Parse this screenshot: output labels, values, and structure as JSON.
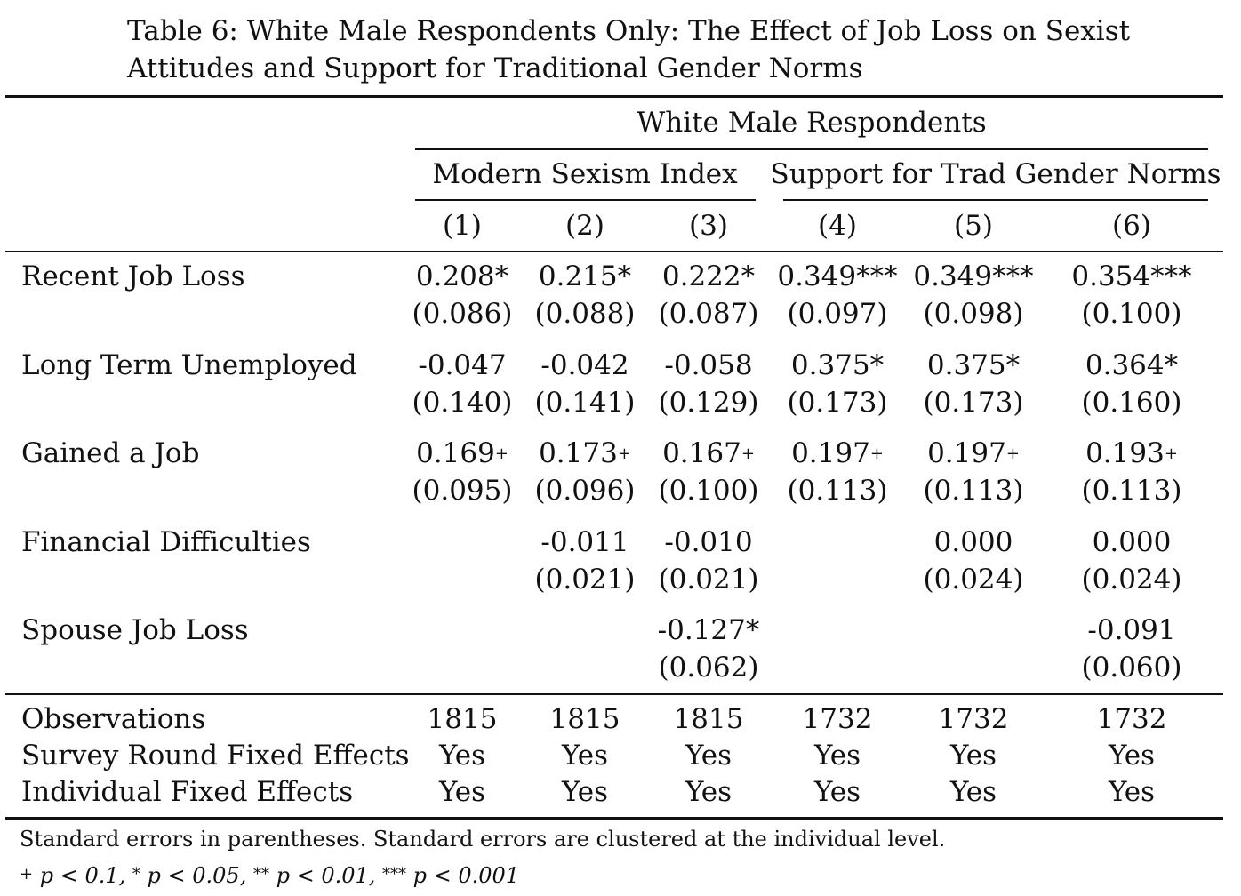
{
  "caption": "Table 6: White Male Respondents Only: The Effect of Job Loss on Sexist Attitudes and Support for Traditional Gender Norms",
  "header": {
    "group": "White Male Respondents",
    "subgroups": [
      "Modern Sexism Index",
      "Support for Trad Gender Norms"
    ],
    "columns": [
      "(1)",
      "(2)",
      "(3)",
      "(4)",
      "(5)",
      "(6)"
    ]
  },
  "rows": [
    {
      "label": "Recent Job Loss",
      "coef": [
        "0.208*",
        "0.215*",
        "0.222*",
        "0.349***",
        "0.349***",
        "0.354***"
      ],
      "se": [
        "(0.086)",
        "(0.088)",
        "(0.087)",
        "(0.097)",
        "(0.098)",
        "(0.100)"
      ]
    },
    {
      "label": "Long Term Unemployed",
      "coef": [
        "-0.047",
        "-0.042",
        "-0.058",
        "0.375*",
        "0.375*",
        "0.364*"
      ],
      "se": [
        "(0.140)",
        "(0.141)",
        "(0.129)",
        "(0.173)",
        "(0.173)",
        "(0.160)"
      ]
    },
    {
      "label": "Gained a Job",
      "coef": [
        "0.169+",
        "0.173+",
        "0.167+",
        "0.197+",
        "0.197+",
        "0.193+"
      ],
      "se": [
        "(0.095)",
        "(0.096)",
        "(0.100)",
        "(0.113)",
        "(0.113)",
        "(0.113)"
      ]
    },
    {
      "label": "Financial Difficulties",
      "coef": [
        "",
        "-0.011",
        "-0.010",
        "",
        "0.000",
        "0.000"
      ],
      "se": [
        "",
        "(0.021)",
        "(0.021)",
        "",
        "(0.024)",
        "(0.024)"
      ]
    },
    {
      "label": "Spouse Job Loss",
      "coef": [
        "",
        "",
        "-0.127*",
        "",
        "",
        "-0.091"
      ],
      "se": [
        "",
        "",
        "(0.062)",
        "",
        "",
        "(0.060)"
      ]
    }
  ],
  "summary": [
    {
      "label": "Observations",
      "values": [
        "1815",
        "1815",
        "1815",
        "1732",
        "1732",
        "1732"
      ]
    },
    {
      "label": "Survey Round Fixed Effects",
      "values": [
        "Yes",
        "Yes",
        "Yes",
        "Yes",
        "Yes",
        "Yes"
      ]
    },
    {
      "label": "Individual Fixed Effects",
      "values": [
        "Yes",
        "Yes",
        "Yes",
        "Yes",
        "Yes",
        "Yes"
      ]
    }
  ],
  "notes": {
    "line1": "Standard errors in parentheses. Standard errors are clustered at the individual level.",
    "line2": [
      {
        "sym": "+",
        "text": "p < 0.1,"
      },
      {
        "sym": "*",
        "text": "p < 0.05,"
      },
      {
        "sym": "**",
        "text": "p < 0.01,"
      },
      {
        "sym": "***",
        "text": "p < 0.001"
      }
    ]
  }
}
